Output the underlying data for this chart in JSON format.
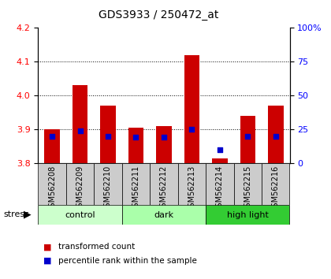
{
  "title": "GDS3933 / 250472_at",
  "samples": [
    "GSM562208",
    "GSM562209",
    "GSM562210",
    "GSM562211",
    "GSM562212",
    "GSM562213",
    "GSM562214",
    "GSM562215",
    "GSM562216"
  ],
  "transformed_counts": [
    3.9,
    4.03,
    3.97,
    3.905,
    3.91,
    4.12,
    3.815,
    3.94,
    3.97
  ],
  "percentile_ranks": [
    20,
    24,
    20,
    19,
    19,
    25,
    10,
    20,
    20
  ],
  "groups": [
    {
      "label": "control",
      "indices": [
        0,
        1,
        2
      ],
      "color": "#ccffcc"
    },
    {
      "label": "dark",
      "indices": [
        3,
        4,
        5
      ],
      "color": "#aaffaa"
    },
    {
      "label": "high light",
      "indices": [
        6,
        7,
        8
      ],
      "color": "#33cc33"
    }
  ],
  "ylim_left": [
    3.8,
    4.2
  ],
  "ylim_right": [
    0,
    100
  ],
  "yticks_left": [
    3.8,
    3.9,
    4.0,
    4.1,
    4.2
  ],
  "yticks_right": [
    0,
    25,
    50,
    75,
    100
  ],
  "bar_color": "#cc0000",
  "dot_color": "#0000cc",
  "bar_width": 0.55,
  "label_area_color": "#cccccc",
  "stress_label": "stress",
  "legend_red": "transformed count",
  "legend_blue": "percentile rank within the sample",
  "gridlines": [
    3.9,
    4.0,
    4.1
  ]
}
